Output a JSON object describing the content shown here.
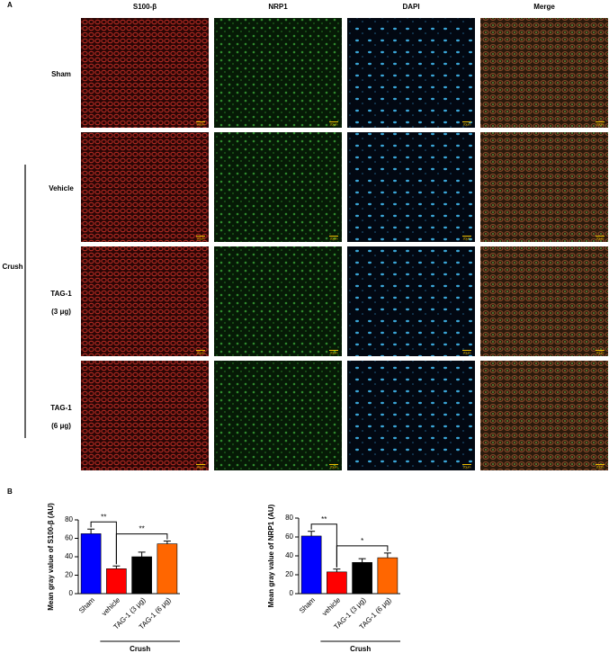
{
  "panel_a": {
    "label": "A",
    "columns": [
      "S100-β",
      "NRP1",
      "DAPI",
      "Merge"
    ],
    "rows": [
      [
        "Sham"
      ],
      [
        "Vehicle"
      ],
      [
        "TAG-1",
        "(3 μg)"
      ],
      [
        "TAG-1",
        "(6 μg)"
      ]
    ],
    "group": "Crush",
    "scale_bar": "20μm"
  },
  "panel_b_label": "B",
  "chart_data": [
    {
      "type": "bar",
      "y_label": "Mean gray value of S100-β (AU)",
      "categories": [
        "Sham",
        "vehicle",
        "TAG-1 (3 μg)",
        "TAG-1 (6 μg)"
      ],
      "values": [
        65,
        27,
        40,
        54
      ],
      "errors": [
        5,
        3,
        5,
        3
      ],
      "colors": [
        "#0000ff",
        "#ff0000",
        "#000000",
        "#ff6600"
      ],
      "ylim": [
        0,
        80
      ],
      "yticks": [
        0,
        20,
        40,
        60,
        80
      ],
      "brackets": [
        {
          "text": "**",
          "categories": [
            "Sham",
            "vehicle"
          ]
        },
        {
          "text": "**",
          "categories": [
            "vehicle",
            "TAG-1 (6 μg)"
          ]
        }
      ],
      "group_label": "Crush"
    },
    {
      "type": "bar",
      "y_label": "Mean gray value of  NRP1 (AU)",
      "categories": [
        "Sham",
        "vehicle",
        "TAG-1 (3 μg)",
        "TAG-1 (6 μg)"
      ],
      "values": [
        61,
        23,
        33,
        38
      ],
      "errors": [
        5,
        3,
        4,
        5
      ],
      "colors": [
        "#0000ff",
        "#ff0000",
        "#000000",
        "#ff6600"
      ],
      "ylim": [
        0,
        80
      ],
      "yticks": [
        0,
        20,
        40,
        60,
        80
      ],
      "brackets": [
        {
          "text": "**",
          "categories": [
            "Sham",
            "vehicle"
          ]
        },
        {
          "text": "*",
          "categories": [
            "vehicle",
            "TAG-1 (6 μg)"
          ]
        }
      ],
      "group_label": "Crush"
    }
  ]
}
